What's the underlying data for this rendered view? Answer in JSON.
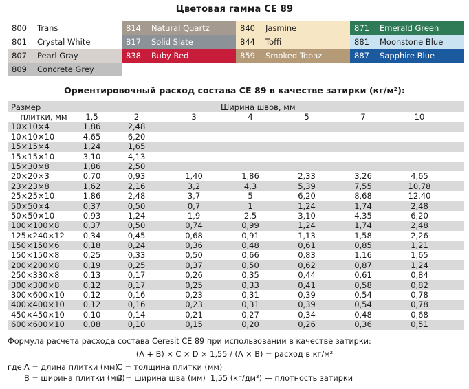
{
  "title": "Цветовая гамма CE 89",
  "colors": [
    {
      "code": "800",
      "name": "Trans",
      "bg": "#ffffff",
      "fg": "#1a1a1a"
    },
    {
      "code": "814",
      "name": "Natural Quartz",
      "bg": "#a59a8f",
      "fg": "#ffffff"
    },
    {
      "code": "840",
      "name": "Jasmine",
      "bg": "#f6e6c4",
      "fg": "#1a1a1a"
    },
    {
      "code": "871",
      "name": "Emerald Green",
      "bg": "#2f7b58",
      "fg": "#ffffff"
    },
    {
      "code": "801",
      "name": "Crystal White",
      "bg": "#ffffff",
      "fg": "#1a1a1a"
    },
    {
      "code": "817",
      "name": "Solid Slate",
      "bg": "#8c9398",
      "fg": "#ffffff"
    },
    {
      "code": "844",
      "name": "Toffi",
      "bg": "#f6e6c4",
      "fg": "#1a1a1a"
    },
    {
      "code": "881",
      "name": "Moonstone Blue",
      "bg": "#c9e3f3",
      "fg": "#1a1a1a"
    },
    {
      "code": "807",
      "name": "Pearl Gray",
      "bg": "#d6d1cd",
      "fg": "#1a1a1a"
    },
    {
      "code": "838",
      "name": "Ruby Red",
      "bg": "#c81d3a",
      "fg": "#ffffff"
    },
    {
      "code": "859",
      "name": "Smoked Topaz",
      "bg": "#b59a78",
      "fg": "#ffffff"
    },
    {
      "code": "887",
      "name": "Sapphire Blue",
      "bg": "#1c5aa0",
      "fg": "#ffffff"
    },
    {
      "code": "809",
      "name": "Concrete Grey",
      "bg": "#bfbfbf",
      "fg": "#1a1a1a"
    }
  ],
  "table": {
    "title": "Ориентировочный расход состава CE 89 в качестве затирки (кг/м²):",
    "size_label": "Размер",
    "size_label2": "плитки, мм",
    "width_label": "Ширина швов, мм",
    "widths": [
      "1,5",
      "2",
      "3",
      "4",
      "5",
      "7",
      "10"
    ],
    "rows": [
      {
        "size": "10×10×4",
        "v": [
          "1,86",
          "2,48",
          "",
          "",
          "",
          "",
          ""
        ]
      },
      {
        "size": "10×10×10",
        "v": [
          "4,65",
          "6,20",
          "",
          "",
          "",
          "",
          ""
        ]
      },
      {
        "size": "15×15×4",
        "v": [
          "1,24",
          "1,65",
          "",
          "",
          "",
          "",
          ""
        ]
      },
      {
        "size": "15×15×10",
        "v": [
          "3,10",
          "4,13",
          "",
          "",
          "",
          "",
          ""
        ]
      },
      {
        "size": "15×30×8",
        "v": [
          "1,86",
          "2,50",
          "",
          "",
          "",
          "",
          ""
        ]
      },
      {
        "size": "20×20×3",
        "v": [
          "0,70",
          "0,93",
          "1,40",
          "1,86",
          "2,33",
          "3,26",
          "4,65"
        ]
      },
      {
        "size": "23×23×8",
        "v": [
          "1,62",
          "2,16",
          "3,2",
          "4,3",
          "5,39",
          "7,55",
          "10,78"
        ]
      },
      {
        "size": "25×25×10",
        "v": [
          "1,86",
          "2,48",
          "3,7",
          "5",
          "6,20",
          "8,68",
          "12,40"
        ]
      },
      {
        "size": "50×50×4",
        "v": [
          "0,37",
          "0,50",
          "0,7",
          "1",
          "1,24",
          "1,74",
          "2,48"
        ]
      },
      {
        "size": "50×50×10",
        "v": [
          "0,93",
          "1,24",
          "1,9",
          "2,5",
          "3,10",
          "4,35",
          "6,20"
        ]
      },
      {
        "size": "100×100×8",
        "v": [
          "0,37",
          "0,50",
          "0,74",
          "0,99",
          "1,24",
          "1,74",
          "2,48"
        ]
      },
      {
        "size": "125×240×12",
        "v": [
          "0,34",
          "0,45",
          "0,68",
          "0,91",
          "1,13",
          "1,58",
          "2,26"
        ]
      },
      {
        "size": "150×150×6",
        "v": [
          "0,18",
          "0,24",
          "0,36",
          "0,48",
          "0,61",
          "0,85",
          "1,21"
        ]
      },
      {
        "size": "150×150×8",
        "v": [
          "0,25",
          "0,33",
          "0,50",
          "0,66",
          "0,83",
          "1,16",
          "1,65"
        ]
      },
      {
        "size": "200×200×8",
        "v": [
          "0,19",
          "0,25",
          "0,37",
          "0,50",
          "0,62",
          "0,87",
          "1,24"
        ]
      },
      {
        "size": "250×330×8",
        "v": [
          "0,13",
          "0,17",
          "0,26",
          "0,35",
          "0,44",
          "0,61",
          "0,84"
        ]
      },
      {
        "size": "300×300×8",
        "v": [
          "0,12",
          "0,17",
          "0,25",
          "0,33",
          "0,41",
          "0,58",
          "0,82"
        ]
      },
      {
        "size": "300×600×10",
        "v": [
          "0,12",
          "0,16",
          "0,23",
          "0,31",
          "0,39",
          "0,54",
          "0,78"
        ]
      },
      {
        "size": "400×400×10",
        "v": [
          "0,12",
          "0,16",
          "0,23",
          "0,31",
          "0,39",
          "0,54",
          "0,78"
        ]
      },
      {
        "size": "450×450×10",
        "v": [
          "0,10",
          "0,14",
          "0,21",
          "0,27",
          "0,34",
          "0,48",
          "0,68"
        ]
      },
      {
        "size": "600×600×10",
        "v": [
          "0,08",
          "0,10",
          "0,15",
          "0,20",
          "0,26",
          "0,36",
          "0,51"
        ]
      }
    ]
  },
  "formula": {
    "title": "Формула расчета расхода состава Ceresit CE 89 при использовании в качестве затирки:",
    "expr": "(A + B) × C × D × 1,55 / (A × B) = расход в кг/м²",
    "where": "где:",
    "a": "A = длина плитки (мм)",
    "c": "C = толщина плитки (мм)",
    "b": "B = ширина плитки (мм)",
    "d": "D = ширина шва (мм)",
    "density": "1,55 (кг/дм³) — плотность затирки"
  }
}
